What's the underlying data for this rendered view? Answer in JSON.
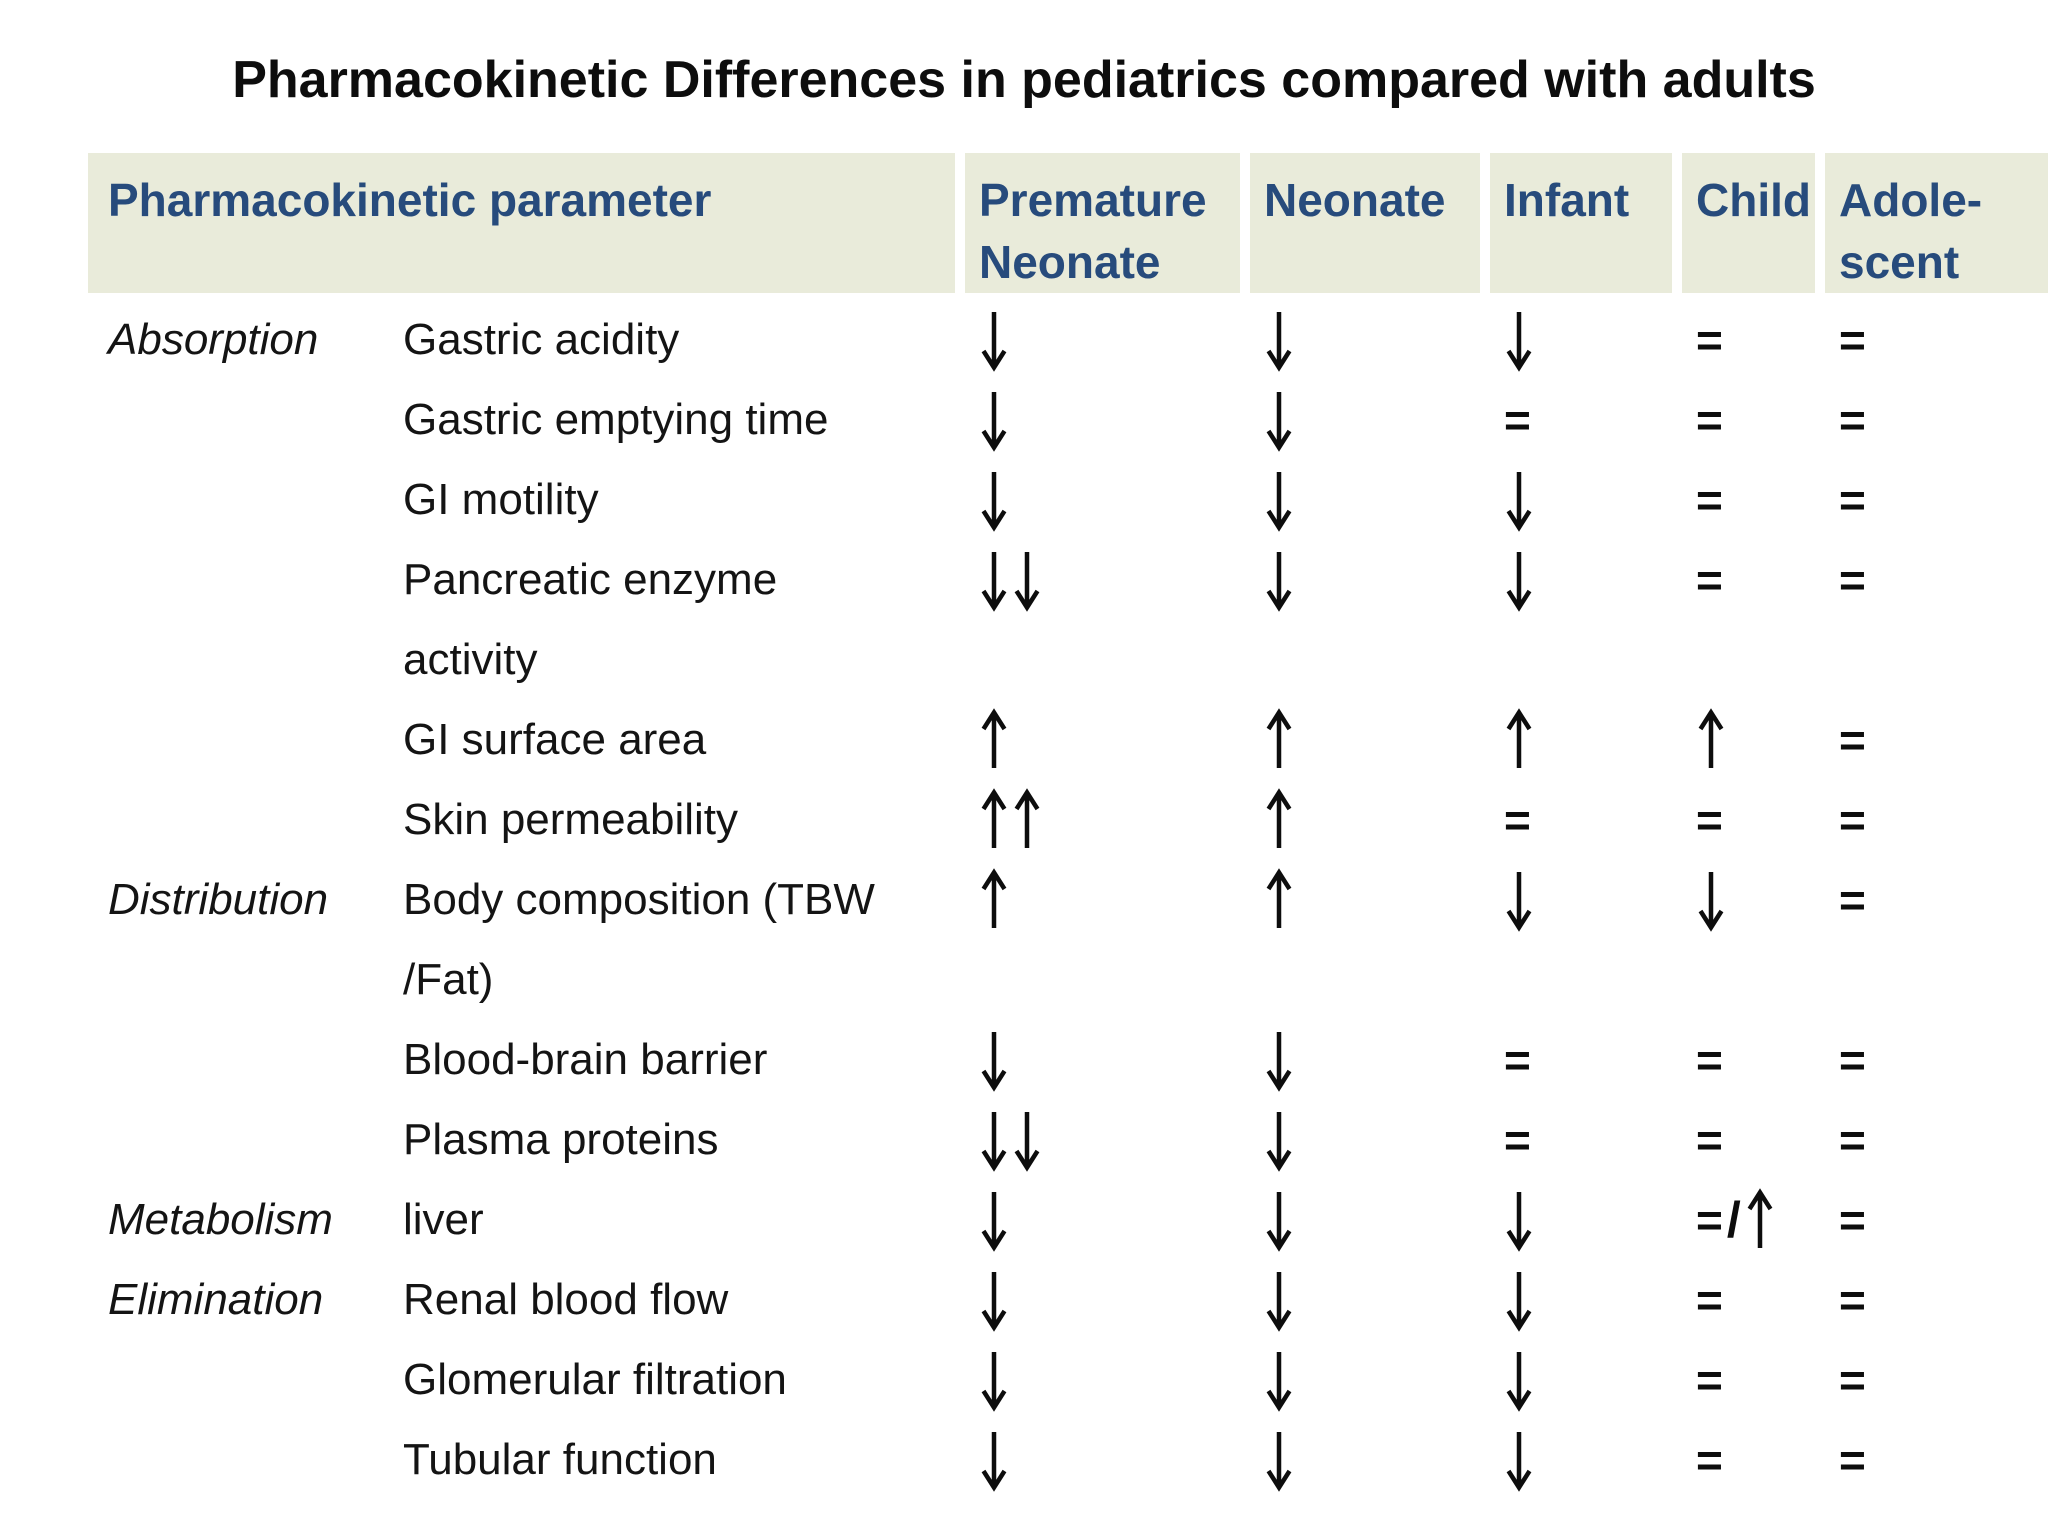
{
  "title": "Pharmacokinetic Differences in pediatrics compared with adults",
  "colors": {
    "background": "#ffffff",
    "header_bg": "#e9ebda",
    "header_text": "#274b7c",
    "body_text": "#111111"
  },
  "table": {
    "header": {
      "parameter": "Pharmacokinetic parameter",
      "columns": [
        "Premature\nNeonate",
        "Neonate",
        "Infant",
        "Child",
        "Adole-\nscent"
      ]
    },
    "rows": [
      {
        "category": "Absorption",
        "parameter": "Gastric acidity",
        "values": [
          "↓",
          "↓",
          "↓",
          "=",
          "="
        ]
      },
      {
        "category": "",
        "parameter": "Gastric emptying time",
        "values": [
          "↓",
          "↓",
          "=",
          "=",
          "="
        ]
      },
      {
        "category": "",
        "parameter": "GI motility",
        "values": [
          "↓",
          "↓",
          "↓",
          "=",
          "="
        ]
      },
      {
        "category": "",
        "parameter": "Pancreatic enzyme\nactivity",
        "values": [
          "↓↓",
          "↓",
          "↓",
          "=",
          "="
        ]
      },
      {
        "category": "",
        "parameter": "GI surface area",
        "values": [
          "↑",
          "↑",
          "↑",
          "↑",
          "="
        ]
      },
      {
        "category": "",
        "parameter": "Skin permeability",
        "values": [
          "↑↑",
          "↑",
          "=",
          "=",
          "="
        ]
      },
      {
        "category": "Distribution",
        "parameter": "Body composition (TBW\n/Fat)",
        "values": [
          "↑",
          "↑",
          "↓",
          "↓",
          "="
        ]
      },
      {
        "category": "",
        "parameter": "Blood-brain barrier",
        "values": [
          "↓",
          "↓",
          "=",
          "=",
          "="
        ]
      },
      {
        "category": "",
        "parameter": "Plasma proteins",
        "values": [
          "↓↓",
          "↓",
          "=",
          "=",
          "="
        ]
      },
      {
        "category": "Metabolism",
        "parameter": "liver",
        "values": [
          "↓",
          "↓",
          "↓",
          "=/↑",
          "="
        ]
      },
      {
        "category": "Elimination",
        "parameter": "Renal blood flow",
        "values": [
          "↓",
          "↓",
          "↓",
          "=",
          "="
        ]
      },
      {
        "category": "",
        "parameter": "Glomerular filtration",
        "values": [
          "↓",
          "↓",
          "↓",
          "=",
          "="
        ]
      },
      {
        "category": "",
        "parameter": "Tubular function",
        "values": [
          "↓",
          "↓",
          "↓",
          "=",
          "="
        ]
      }
    ]
  }
}
